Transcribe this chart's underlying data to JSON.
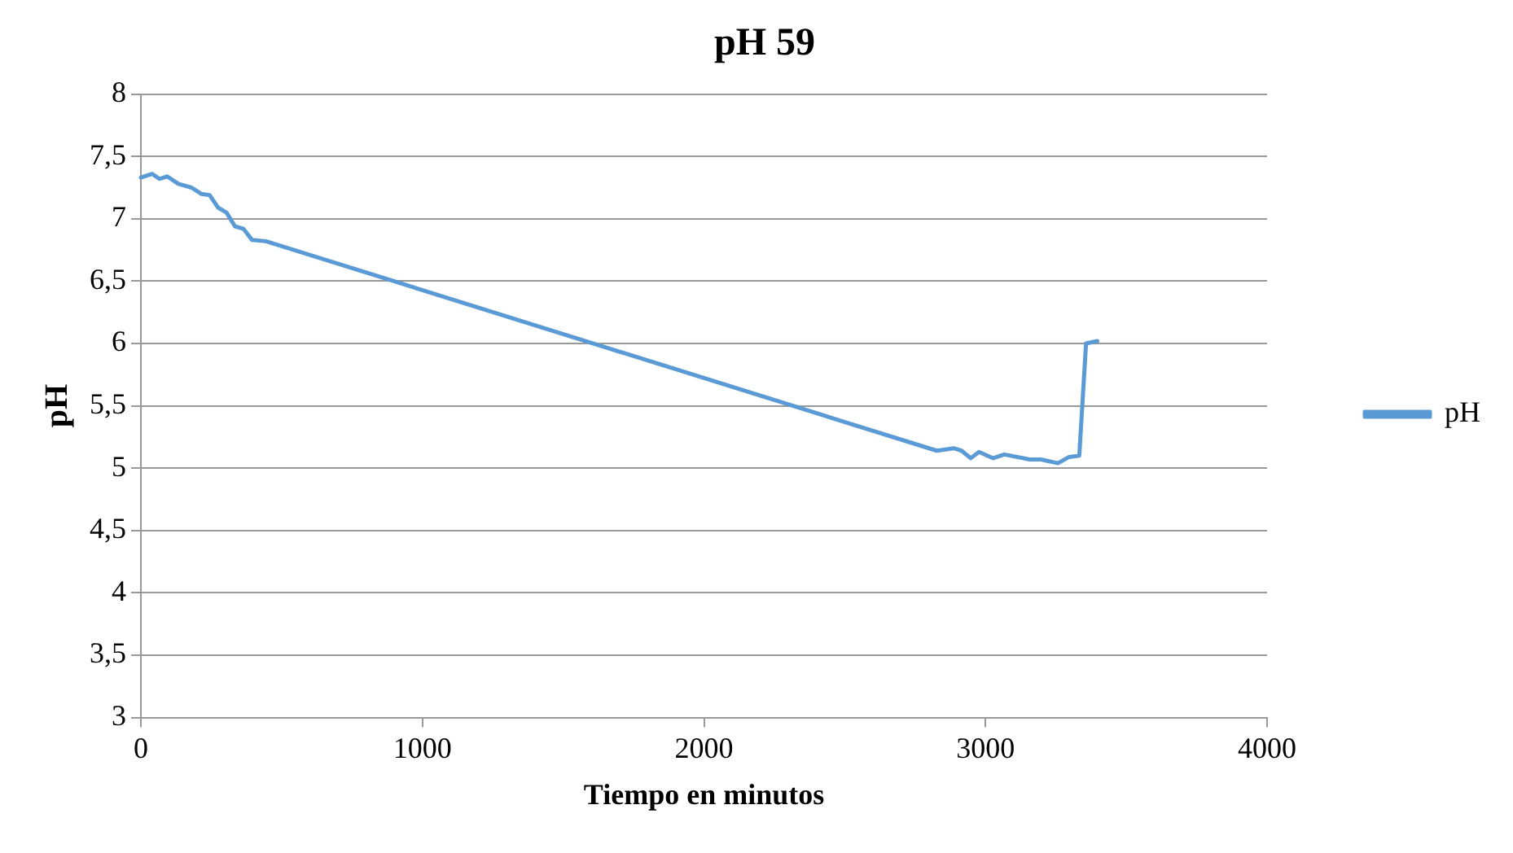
{
  "chart_data": {
    "type": "line",
    "title": "pH 59",
    "xlabel": "Tiempo en minutos",
    "ylabel": "pH",
    "xlim": [
      0,
      4000
    ],
    "xticks": [
      0,
      1000,
      2000,
      3000,
      4000
    ],
    "ylim": [
      3,
      8
    ],
    "yticks": [
      3,
      {
        "value": 3.5,
        "label": "3,5"
      },
      4,
      {
        "value": 4.5,
        "label": "4,5"
      },
      5,
      {
        "value": 5.5,
        "label": "5,5"
      },
      6,
      {
        "value": 6.5,
        "label": "6,5"
      },
      7,
      {
        "value": 7.5,
        "label": "7,5"
      },
      8
    ],
    "grid": "y",
    "legend": "right",
    "marker": "none",
    "line_style": "solid",
    "series": [
      {
        "name": "pH",
        "color": "#5b9bd5",
        "x": [
          0,
          40,
          66,
          94,
          133,
          180,
          214,
          244,
          274,
          304,
          334,
          364,
          395,
          444,
          2827,
          2887,
          2915,
          2947,
          2977,
          3027,
          3067,
          3157,
          3197,
          3257,
          3297,
          3333,
          3357,
          3397
        ],
        "values": [
          7.33,
          7.36,
          7.32,
          7.34,
          7.28,
          7.25,
          7.2,
          7.19,
          7.09,
          7.05,
          6.94,
          6.92,
          6.83,
          6.82,
          5.14,
          5.16,
          5.14,
          5.08,
          5.13,
          5.08,
          5.11,
          5.07,
          5.07,
          5.04,
          5.09,
          5.1,
          6.0,
          6.02
        ]
      }
    ]
  }
}
